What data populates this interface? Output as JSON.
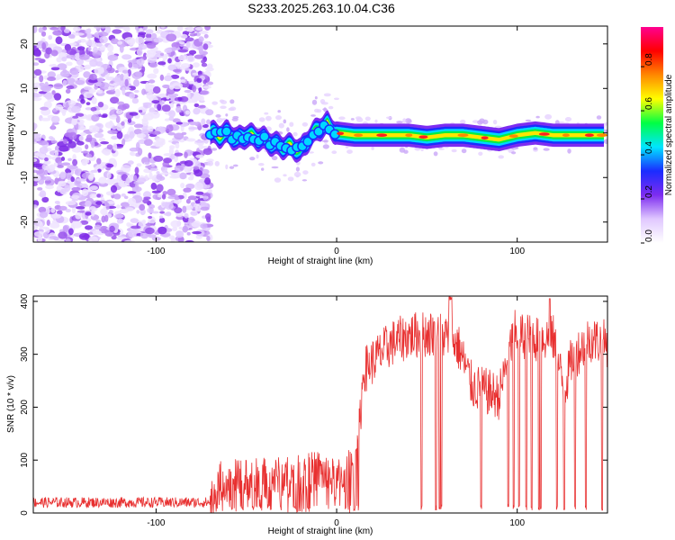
{
  "title": "S233.2025.263.10.04.C36",
  "chart_data": [
    {
      "type": "heatmap",
      "name": "spectrogram",
      "xlabel": "Height of straight line (km)",
      "ylabel": "Frequency (Hz)",
      "xlim": [
        -168,
        150
      ],
      "ylim": [
        -24.5,
        24
      ],
      "xticks": [
        -100,
        0,
        100
      ],
      "yticks": [
        -20,
        -10,
        0,
        10,
        20
      ],
      "xtick_labels": [
        "-100",
        "0",
        "100"
      ],
      "ytick_labels": [
        "-20",
        "-10",
        "0",
        "10",
        "20"
      ],
      "colorbar": {
        "label": "Normalized spectral amplitude",
        "range": [
          0,
          0.98
        ],
        "ticks": [
          0.0,
          0.2,
          0.4,
          0.6,
          0.8
        ],
        "tick_labels": [
          "0.0",
          "0.2",
          "0.4",
          "0.6",
          "0.8"
        ],
        "colors": [
          "#ffffff",
          "#e0c8ff",
          "#7d2cf0",
          "#1a2cff",
          "#00e5ff",
          "#00ff44",
          "#ffff00",
          "#ff8800",
          "#ff0000",
          "#ff0090"
        ]
      },
      "noise_region_x": [
        -168,
        -70
      ],
      "ridge": {
        "x": [
          -70,
          -65,
          -60,
          -55,
          -50,
          -45,
          -40,
          -35,
          -30,
          -25,
          -20,
          -15,
          -10,
          -5,
          0,
          10,
          20,
          30,
          40,
          50,
          60,
          70,
          80,
          90,
          100,
          110,
          120,
          130,
          140,
          148
        ],
        "freq": [
          0,
          -0.5,
          0,
          -1.5,
          -0.5,
          -1,
          -1.5,
          -2.5,
          -3,
          -3,
          -4,
          -1,
          1,
          2,
          0,
          -0.5,
          -0.5,
          -0.5,
          -0.5,
          -1,
          -0.5,
          -0.5,
          -1,
          -1.5,
          -0.5,
          0,
          -0.5,
          -0.5,
          -0.5,
          -0.5
        ],
        "peak_amplitude": 0.95
      }
    },
    {
      "type": "line",
      "name": "snr",
      "xlabel": "Height of straight line (km)",
      "ylabel": "SNR (10 * v/v)",
      "xlim": [
        -168,
        150
      ],
      "ylim": [
        0,
        410
      ],
      "xticks": [
        -100,
        0,
        100
      ],
      "yticks": [
        0,
        100,
        200,
        300,
        400
      ],
      "xtick_labels": [
        "-100",
        "0",
        "100"
      ],
      "ytick_labels": [
        "0",
        "100",
        "200",
        "300",
        "400"
      ],
      "color": "#e83030",
      "trend": {
        "x": [
          -168,
          -70,
          -64,
          -40,
          -20,
          -10,
          0,
          10,
          13,
          15,
          30,
          40,
          55,
          64,
          68,
          75,
          90,
          98,
          110,
          120,
          126,
          130,
          140,
          150
        ],
        "snr": [
          20,
          20,
          60,
          65,
          70,
          80,
          60,
          90,
          180,
          270,
          320,
          335,
          340,
          330,
          310,
          240,
          220,
          340,
          330,
          330,
          230,
          290,
          330,
          320
        ]
      },
      "dropouts_x": [
        -58,
        -52,
        -46,
        -38,
        -31,
        -23,
        -16,
        5,
        10,
        47,
        55,
        57,
        58,
        80,
        95,
        98,
        101,
        105,
        108,
        112,
        113,
        118,
        122,
        126,
        132,
        138,
        147
      ]
    }
  ]
}
